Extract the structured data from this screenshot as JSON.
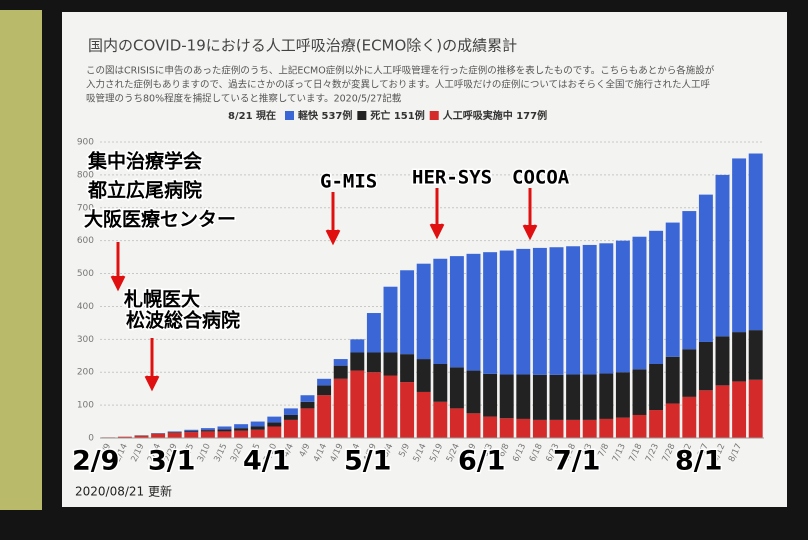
{
  "chart_data": {
    "type": "stacked-bar",
    "title": "国内のCOVID-19における人工呼吸治療(ECMO除く)の成績累計",
    "description_lines": [
      "この図はCRISISに申告のあった症例のうち、上記ECMO症例以外に人工呼吸管理を行った症例の推移を表したものです。こちらもあとから各施設が",
      "入力された症例もありますので、過去にさかのぼって日々数が変異しております。人工呼吸だけの症例についてはおそらく全国で施行された人工呼",
      "吸管理のうち80%程度を捕捉していると推察しています。2020/5/27記載"
    ],
    "as_of": "8/21 現在",
    "categories": [
      "2/9",
      "2/14",
      "2/19",
      "2/24",
      "2/29",
      "3/5",
      "3/10",
      "3/15",
      "3/20",
      "3/25",
      "3/30",
      "4/4",
      "4/9",
      "4/14",
      "4/19",
      "4/24",
      "4/29",
      "5/4",
      "5/9",
      "5/14",
      "5/19",
      "5/24",
      "5/29",
      "6/3",
      "6/8",
      "6/13",
      "6/18",
      "6/23",
      "6/28",
      "7/3",
      "7/8",
      "7/13",
      "7/18",
      "7/23",
      "7/28",
      "8/2",
      "8/7",
      "8/12",
      "8/17",
      null
    ],
    "series": [
      {
        "name": "軽快 537例",
        "color": "#3a66d6",
        "values": [
          0,
          0,
          0,
          1,
          2,
          4,
          6,
          9,
          12,
          15,
          18,
          20,
          20,
          20,
          20,
          40,
          120,
          200,
          255,
          290,
          320,
          338,
          355,
          370,
          377,
          382,
          386,
          388,
          390,
          394,
          396,
          400,
          403,
          405,
          408,
          420,
          448,
          491,
          528,
          537
        ]
      },
      {
        "name": "死亡 151例",
        "color": "#222222",
        "values": [
          0,
          0,
          1,
          1,
          2,
          3,
          4,
          6,
          8,
          10,
          12,
          15,
          20,
          30,
          40,
          55,
          60,
          70,
          85,
          100,
          115,
          125,
          130,
          130,
          133,
          135,
          137,
          137,
          138,
          138,
          138,
          138,
          139,
          140,
          142,
          145,
          147,
          149,
          150,
          151
        ]
      },
      {
        "name": "人工呼吸実施中 177例",
        "color": "#d42a2a",
        "values": [
          2,
          4,
          7,
          13,
          16,
          18,
          20,
          20,
          22,
          25,
          35,
          55,
          90,
          130,
          180,
          205,
          200,
          190,
          170,
          140,
          110,
          90,
          75,
          65,
          60,
          58,
          55,
          55,
          55,
          55,
          58,
          62,
          70,
          85,
          105,
          125,
          145,
          160,
          172,
          177
        ]
      }
    ],
    "ylim": [
      0,
      900
    ],
    "yticks": [
      0,
      100,
      200,
      300,
      400,
      500,
      600,
      700,
      800,
      900
    ],
    "grid": true,
    "annotations": [
      "集中治療学会",
      "都立広尾病院",
      "大阪医療センター",
      "札幌医大",
      "松波総合病院",
      "G-MIS",
      "HER-SYS",
      "COCOA"
    ],
    "date_callouts": [
      "2/9",
      "3/1",
      "4/1",
      "5/1",
      "6/1",
      "7/1",
      "8/1"
    ],
    "footer": "2020/08/21 更新"
  }
}
